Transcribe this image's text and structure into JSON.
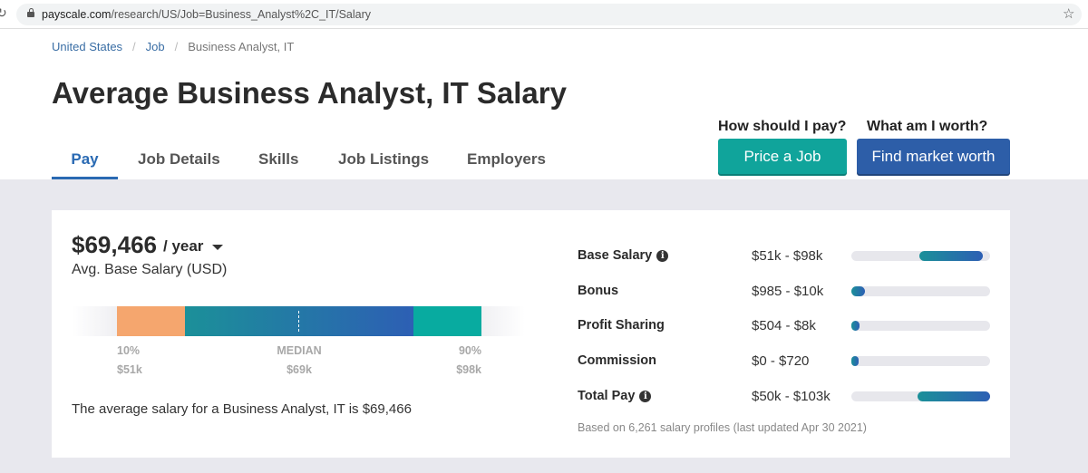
{
  "browser": {
    "url_domain": "payscale.com",
    "url_path": "/research/US/Job=Business_Analyst%2C_IT/Salary"
  },
  "breadcrumb": [
    "United States",
    "Job",
    "Business Analyst, IT"
  ],
  "title": "Average Business Analyst, IT Salary",
  "tabs": [
    "Pay",
    "Job Details",
    "Skills",
    "Job Listings",
    "Employers"
  ],
  "cta": {
    "pay_q": "How should I pay?",
    "pay_btn": "Price a Job",
    "worth_q": "What am I worth?",
    "worth_btn": "Find market worth"
  },
  "salary": {
    "amount": "$69,466",
    "period": "/ year",
    "caption": "Avg. Base Salary (USD)",
    "p10_label": "10%",
    "p10": "$51k",
    "median_label": "MEDIAN",
    "median": "$69k",
    "p90_label": "90%",
    "p90": "$98k",
    "summary": "The average salary for a Business Analyst, IT is $69,466"
  },
  "colors": {
    "low": "#f5a66e",
    "mid_start": "#1b9099",
    "mid_end": "#2d5fb4",
    "high": "#08aba0"
  },
  "breakdown": [
    {
      "name": "Base Salary",
      "info": true,
      "range": "$51k - $98k",
      "start": 0.49,
      "end": 0.95
    },
    {
      "name": "Bonus",
      "info": false,
      "range": "$985 - $10k",
      "start": 0.0,
      "end": 0.1
    },
    {
      "name": "Profit Sharing",
      "info": false,
      "range": "$504 - $8k",
      "start": 0.0,
      "end": 0.06
    },
    {
      "name": "Commission",
      "info": false,
      "range": "$0 - $720",
      "start": 0.0,
      "end": 0.05
    },
    {
      "name": "Total Pay",
      "info": true,
      "range": "$50k - $103k",
      "start": 0.48,
      "end": 1.0
    }
  ],
  "footnote": "Based on 6,261 salary profiles (last updated Apr 30 2021)"
}
